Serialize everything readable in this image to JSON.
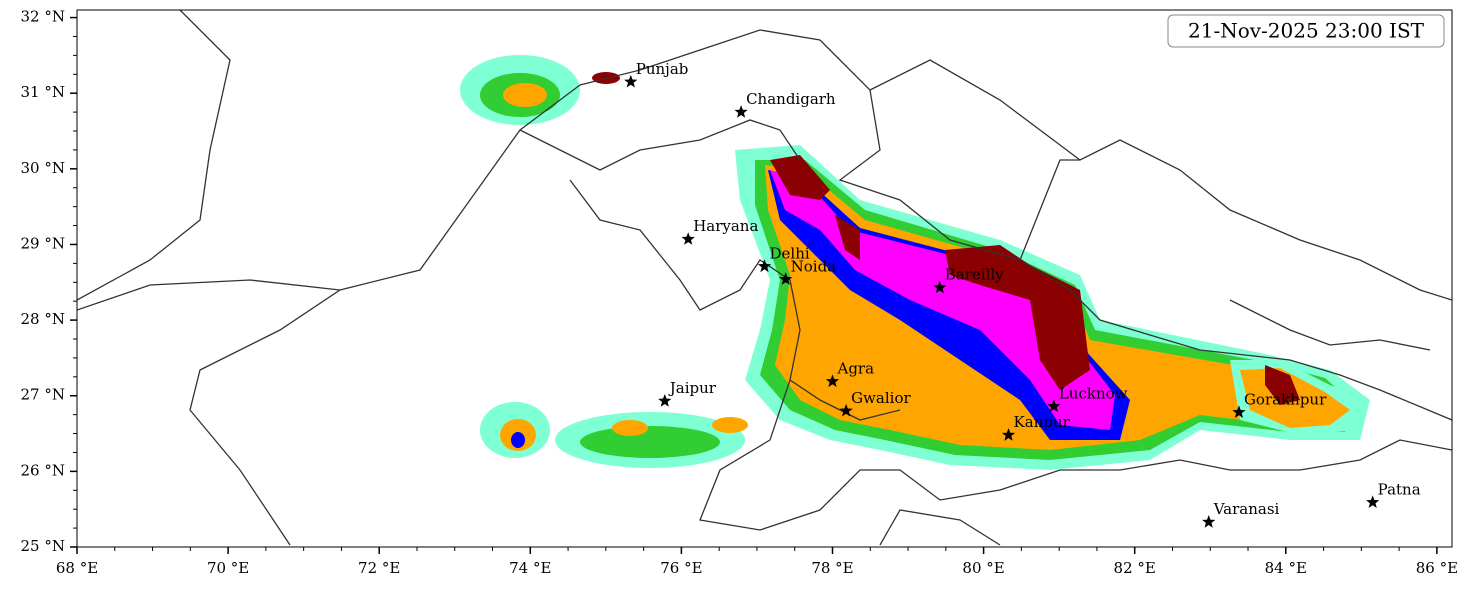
{
  "timestamp": "21-Nov-2025 23:00 IST",
  "map": {
    "xlim": [
      68,
      86.2
    ],
    "ylim": [
      25,
      32.1
    ],
    "xticks": [
      {
        "value": 68,
        "label": "68 °E"
      },
      {
        "value": 70,
        "label": "70 °E"
      },
      {
        "value": 72,
        "label": "72 °E"
      },
      {
        "value": 74,
        "label": "74 °E"
      },
      {
        "value": 76,
        "label": "76 °E"
      },
      {
        "value": 78,
        "label": "78 °E"
      },
      {
        "value": 80,
        "label": "80 °E"
      },
      {
        "value": 82,
        "label": "82 °E"
      },
      {
        "value": 84,
        "label": "84 °E"
      },
      {
        "value": 86,
        "label": "86 °E"
      }
    ],
    "yticks": [
      {
        "value": 25,
        "label": "25 °N"
      },
      {
        "value": 26,
        "label": "26 °N"
      },
      {
        "value": 27,
        "label": "27 °N"
      },
      {
        "value": 28,
        "label": "28 °N"
      },
      {
        "value": 29,
        "label": "29 °N"
      },
      {
        "value": 30,
        "label": "30 °N"
      },
      {
        "value": 31,
        "label": "31 °N"
      },
      {
        "value": 32,
        "label": "32 °N"
      }
    ],
    "cities": [
      {
        "label": "Punjab",
        "lon": 75.33,
        "lat": 31.15
      },
      {
        "label": "Chandigarh",
        "lon": 76.79,
        "lat": 30.75
      },
      {
        "label": "Haryana",
        "lon": 76.09,
        "lat": 29.07
      },
      {
        "label": "Delhi",
        "lon": 77.1,
        "lat": 28.71
      },
      {
        "label": "Noida",
        "lon": 77.38,
        "lat": 28.54
      },
      {
        "label": "Bareilly",
        "lon": 79.42,
        "lat": 28.43
      },
      {
        "label": "Agra",
        "lon": 78.0,
        "lat": 27.19
      },
      {
        "label": "Gwalior",
        "lon": 78.18,
        "lat": 26.8
      },
      {
        "label": "Jaipur",
        "lon": 75.78,
        "lat": 26.93
      },
      {
        "label": "Lucknow",
        "lon": 80.93,
        "lat": 26.86
      },
      {
        "label": "Kanpur",
        "lon": 80.33,
        "lat": 26.48
      },
      {
        "label": "Gorakhpur",
        "lon": 83.38,
        "lat": 26.78
      },
      {
        "label": "Varanasi",
        "lon": 82.98,
        "lat": 25.33
      },
      {
        "label": "Patna",
        "lon": 85.15,
        "lat": 25.59
      }
    ]
  }
}
